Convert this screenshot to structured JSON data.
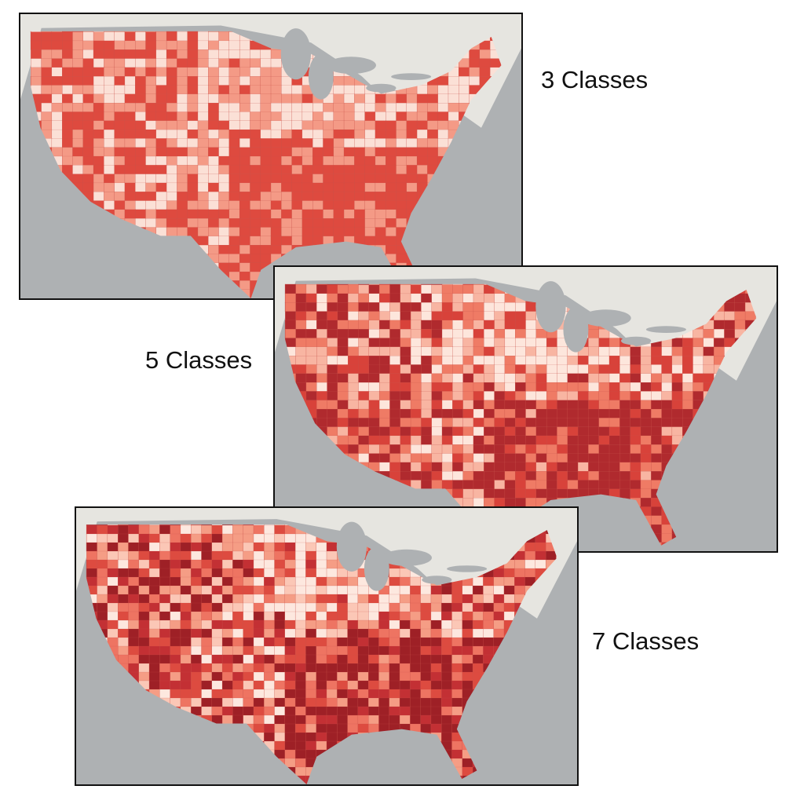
{
  "maps": [
    {
      "label": "3 Classes"
    },
    {
      "label": "5 Classes"
    },
    {
      "label": "7 Classes"
    }
  ]
}
